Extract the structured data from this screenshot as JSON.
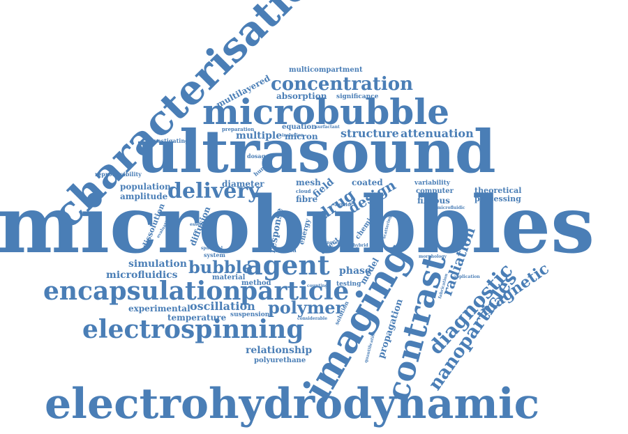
{
  "color": "#4a7eb6",
  "words": [
    "microbubbles",
    "ultrasound",
    "electrohydrodynamic",
    "characterisation",
    "microbubble",
    "imaging",
    "contrast",
    "electrospinning",
    "encapsulation",
    "particle",
    "agent",
    "nanoparticles",
    "diagnostic",
    "magnetic",
    "concentration",
    "delivery",
    "radiation",
    "structure",
    "attenuation",
    "drug",
    "polymer",
    "oscillation",
    "bubble",
    "design",
    "simulation",
    "microfluidics",
    "experimental",
    "temperature",
    "relationship",
    "polyurethane",
    "propagation",
    "multicompartment",
    "multilayered",
    "absorption",
    "significance",
    "multiple",
    "micron",
    "equation",
    "diameter",
    "mesh",
    "coated",
    "population",
    "amplitude",
    "reproducibility",
    "investigating",
    "theoretical",
    "processing",
    "variability",
    "computer",
    "fibrous",
    "fibre",
    "field",
    "response",
    "dissolution",
    "diffusion",
    "material",
    "method",
    "suspension",
    "phase",
    "model",
    "solution",
    "testing",
    "media",
    "effect",
    "energy",
    "chemical",
    "preparation",
    "dosage",
    "human",
    "system",
    "quantification",
    "fabrication",
    "scattering",
    "morphology",
    "surfactant",
    "inclusion",
    "liquid",
    "cloud",
    "spherical",
    "evaluation",
    "essential",
    "considerable",
    "hybrid",
    "novel",
    "counting",
    "application",
    "microfluidic"
  ]
}
